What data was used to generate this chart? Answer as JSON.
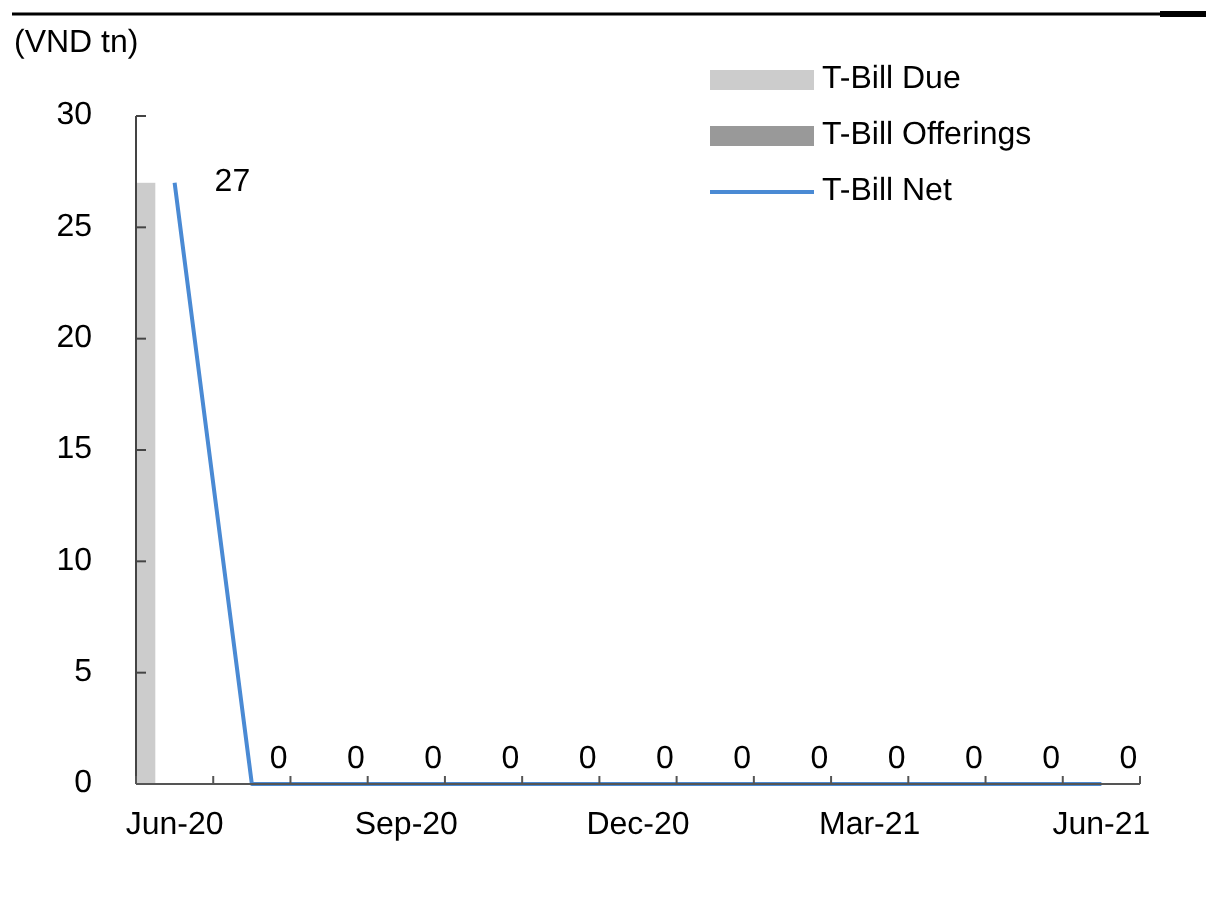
{
  "chart_data": {
    "type": "bar",
    "ylabel": "(VND tn)",
    "categories": [
      "Jun-20",
      null,
      null,
      "Sep-20",
      null,
      null,
      "Dec-20",
      null,
      null,
      "Mar-21",
      null,
      null,
      "Jun-21"
    ],
    "series": [
      {
        "name": "T-Bill Due",
        "color": "#cccccc",
        "values": [
          27,
          0,
          0,
          0,
          0,
          0,
          0,
          0,
          0,
          0,
          0,
          0,
          0
        ]
      },
      {
        "name": "T-Bill Offerings",
        "color": "#999999",
        "values": [
          0,
          0,
          0,
          0,
          0,
          0,
          0,
          0,
          0,
          0,
          0,
          0,
          0
        ]
      },
      {
        "name": "T-Bill Net",
        "type": "line",
        "color": "#4a8ad4",
        "values": [
          27,
          0,
          0,
          0,
          0,
          0,
          0,
          0,
          0,
          0,
          0,
          0,
          0
        ],
        "value_labels": [
          "27",
          "0",
          "0",
          "0",
          "0",
          "0",
          "0",
          "0",
          "0",
          "0",
          "0",
          "0",
          "0"
        ]
      }
    ],
    "ylim": [
      0,
      30
    ],
    "yticks": [
      0,
      5,
      10,
      15,
      20,
      25,
      30
    ],
    "legend": "top right",
    "grid": false
  }
}
